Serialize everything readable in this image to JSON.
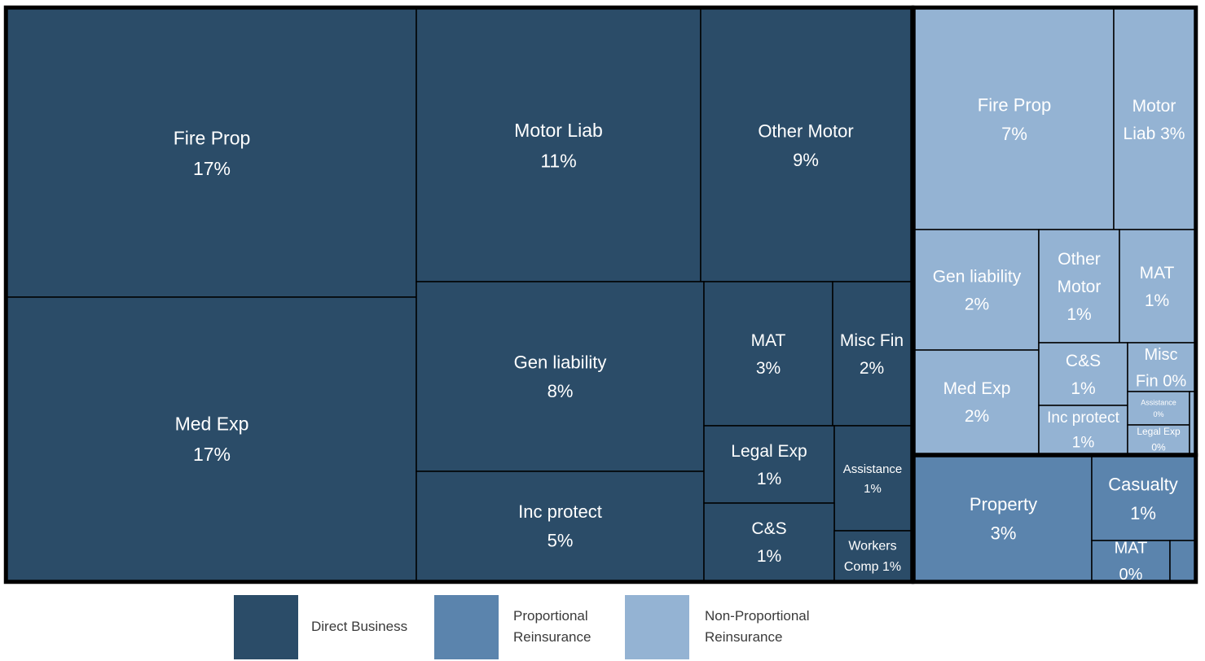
{
  "chart_data": {
    "type": "treemap",
    "colors": {
      "direct": "#2b4c68",
      "proportional": "#5b84ad",
      "non_proportional": "#94b3d3",
      "border": "#000000",
      "label": "#ffffff"
    },
    "legend": {
      "placement": "bottom",
      "items": [
        {
          "group": "direct",
          "label_lines": [
            "Direct Business"
          ]
        },
        {
          "group": "proportional",
          "label_lines": [
            "Proportional",
            "Reinsurance"
          ]
        },
        {
          "group": "non_proportional",
          "label_lines": [
            "Non-Proportional",
            "Reinsurance"
          ]
        }
      ]
    },
    "groups": [
      {
        "id": "direct",
        "name": "Direct Business",
        "items": [
          {
            "id": "d_fire",
            "lines": [
              "Fire Prop",
              "17%"
            ],
            "value": 17
          },
          {
            "id": "d_med",
            "lines": [
              "Med Exp",
              "17%"
            ],
            "value": 17
          },
          {
            "id": "d_motorliab",
            "lines": [
              "Motor Liab",
              "11%"
            ],
            "value": 11
          },
          {
            "id": "d_othermotor",
            "lines": [
              "Other Motor",
              "9%"
            ],
            "value": 9
          },
          {
            "id": "d_genliab",
            "lines": [
              "Gen liability",
              "8%"
            ],
            "value": 8
          },
          {
            "id": "d_incprot",
            "lines": [
              "Inc protect",
              "5%"
            ],
            "value": 5
          },
          {
            "id": "d_mat",
            "lines": [
              "MAT",
              "3%"
            ],
            "value": 3
          },
          {
            "id": "d_miscfin",
            "lines": [
              "Misc Fin",
              "2%"
            ],
            "value": 2
          },
          {
            "id": "d_legal",
            "lines": [
              "Legal Exp",
              "1%"
            ],
            "value": 1
          },
          {
            "id": "d_assist",
            "lines": [
              "Assistance",
              "1%"
            ],
            "value": 1
          },
          {
            "id": "d_cs",
            "lines": [
              "C&S",
              "1%"
            ],
            "value": 1
          },
          {
            "id": "d_workers",
            "lines": [
              "Workers",
              "Comp 1%"
            ],
            "value": 1
          }
        ]
      },
      {
        "id": "non_proportional",
        "name": "Non-Proportional Reinsurance",
        "items": [
          {
            "id": "n_fire",
            "lines": [
              "Fire Prop",
              "7%"
            ],
            "value": 7
          },
          {
            "id": "n_motorliab",
            "lines": [
              "Motor",
              "Liab 3%"
            ],
            "value": 3
          },
          {
            "id": "n_genliab",
            "lines": [
              "Gen liability",
              "2%"
            ],
            "value": 2
          },
          {
            "id": "n_othermotor",
            "lines": [
              "Other",
              "Motor",
              "1%"
            ],
            "value": 1
          },
          {
            "id": "n_mat",
            "lines": [
              "MAT",
              "1%"
            ],
            "value": 1
          },
          {
            "id": "n_med",
            "lines": [
              "Med Exp",
              "2%"
            ],
            "value": 2
          },
          {
            "id": "n_cs",
            "lines": [
              "C&S",
              "1%"
            ],
            "value": 1
          },
          {
            "id": "n_miscfin",
            "lines": [
              "Misc",
              "Fin 0%"
            ],
            "value": 0
          },
          {
            "id": "n_incprot",
            "lines": [
              "Inc protect",
              "1%"
            ],
            "value": 1
          },
          {
            "id": "n_assist",
            "lines": [
              "Assistance",
              "0%"
            ],
            "value": 0
          },
          {
            "id": "n_legal",
            "lines": [
              "Legal Exp",
              "0%"
            ],
            "value": 0
          },
          {
            "id": "n_tiny",
            "lines": [],
            "value": 0
          }
        ]
      },
      {
        "id": "proportional",
        "name": "Proportional Reinsurance",
        "items": [
          {
            "id": "p_property",
            "lines": [
              "Property",
              "3%"
            ],
            "value": 3
          },
          {
            "id": "p_casualty",
            "lines": [
              "Casualty",
              "1%"
            ],
            "value": 1
          },
          {
            "id": "p_mat",
            "lines": [
              "MAT",
              "0%"
            ],
            "value": 0
          },
          {
            "id": "p_tiny",
            "lines": [],
            "value": 0
          }
        ]
      }
    ]
  }
}
